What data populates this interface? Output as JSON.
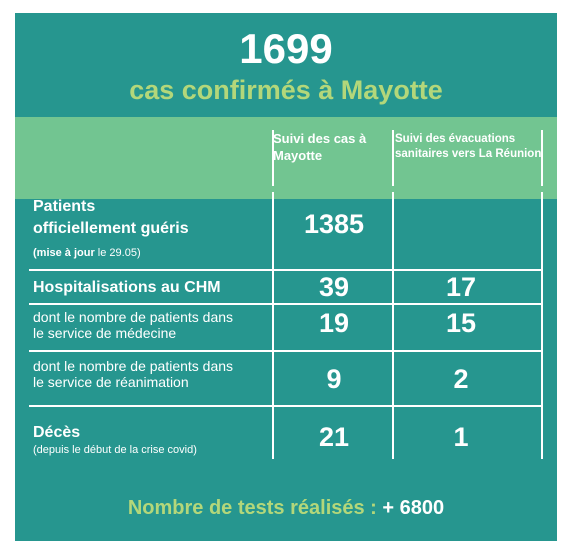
{
  "header": {
    "total": "1699",
    "subtitle": "cas confirmés à Mayotte"
  },
  "columns": {
    "col1": "Suivi des cas à Mayotte",
    "col2": "Suivi des évacuations sanitaires vers La Réunion"
  },
  "rows": [
    {
      "label_line1": "Patients",
      "label_line2": "officiellement guéris",
      "note_bold": "(mise à jour",
      "note_rest": " le 29.05)",
      "col1": "1385",
      "col2": ""
    },
    {
      "label": "Hospitalisations au CHM",
      "col1": "39",
      "col2": "17"
    },
    {
      "label_line1": "dont le nombre de patients dans",
      "label_line2": "le service de médecine",
      "col1": "19",
      "col2": "15"
    },
    {
      "label_line1": "dont le nombre de patients dans",
      "label_line2": "le service de réanimation",
      "col1": "9",
      "col2": "2"
    },
    {
      "label": "Décès",
      "note": "(depuis le début de la crise covid)",
      "col1": "21",
      "col2": "1"
    }
  ],
  "footer": {
    "label": "Nombre de tests réalisés :",
    "value": "+ 6800"
  },
  "colors": {
    "teal": "#26968f",
    "green_band": "#72c591",
    "accent": "#b3d77a"
  }
}
